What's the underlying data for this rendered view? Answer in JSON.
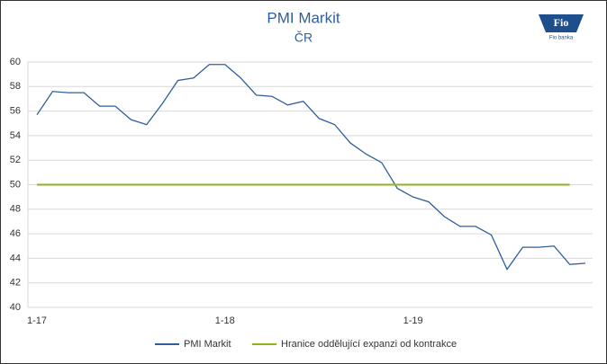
{
  "chart_data": {
    "type": "line",
    "title": "PMI Markit",
    "subtitle": "ČR",
    "logo": {
      "mark": "Fio",
      "text": "Fio banka"
    },
    "categories": [
      "1-17",
      null,
      null,
      null,
      null,
      null,
      null,
      null,
      null,
      null,
      null,
      null,
      "1-18",
      null,
      null,
      null,
      null,
      null,
      null,
      null,
      null,
      null,
      null,
      null,
      "1-19",
      null,
      null,
      null,
      null,
      null,
      null,
      null,
      null,
      null,
      null,
      null
    ],
    "series": [
      {
        "name": "PMI Markit",
        "color": "#2f5e9c",
        "values": [
          55.7,
          57.6,
          57.5,
          57.5,
          56.4,
          56.4,
          55.3,
          54.9,
          56.6,
          58.5,
          58.7,
          59.8,
          59.8,
          58.7,
          57.3,
          57.2,
          56.5,
          56.8,
          55.4,
          54.9,
          53.4,
          52.5,
          51.8,
          49.7,
          49.0,
          48.6,
          47.4,
          46.6,
          46.6,
          45.9,
          43.1,
          44.9,
          44.9,
          45.0,
          43.5,
          43.6
        ]
      },
      {
        "name": "Hranice oddělující expanzi od kontrakce",
        "color": "#8db31a",
        "values": [
          50,
          50,
          50,
          50,
          50,
          50,
          50,
          50,
          50,
          50,
          50,
          50,
          50,
          50,
          50,
          50,
          50,
          50,
          50,
          50,
          50,
          50,
          50,
          50,
          50,
          50,
          50,
          50,
          50,
          50,
          50,
          50,
          50,
          50,
          50,
          null
        ]
      }
    ],
    "ylim": [
      40,
      60
    ],
    "yticks": [
      40,
      42,
      44,
      46,
      48,
      50,
      52,
      54,
      56,
      58,
      60
    ],
    "grid": true
  }
}
